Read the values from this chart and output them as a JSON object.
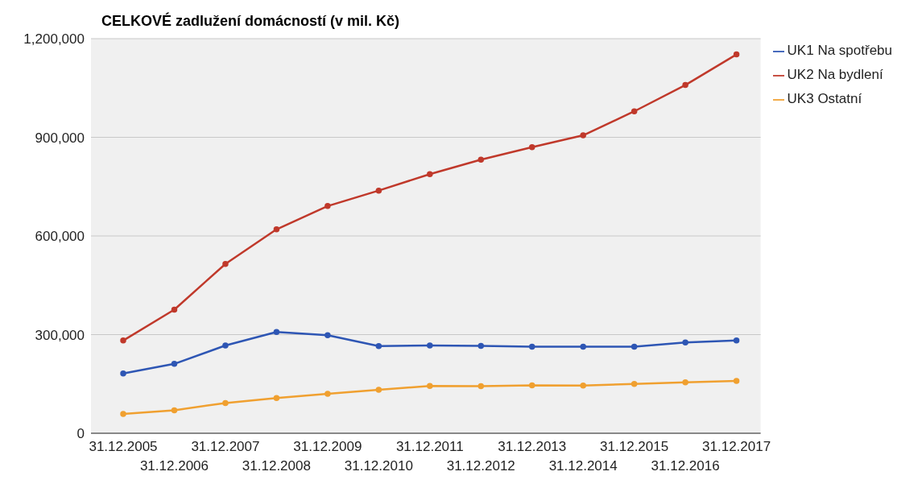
{
  "chart_data": {
    "type": "line",
    "title": "CELKOVÉ zadlužení domácností (v mil. Kč)",
    "categories": [
      "31.12.2005",
      "31.12.2006",
      "31.12.2007",
      "31.12.2008",
      "31.12.2009",
      "31.12.2010",
      "31.12.2011",
      "31.12.2012",
      "31.12.2013",
      "31.12.2014",
      "31.12.2015",
      "31.12.2016",
      "31.12.2017"
    ],
    "series": [
      {
        "name": "UK1 Na spotřebu",
        "color": "#2e56b4",
        "values": [
          182000,
          211000,
          267000,
          308000,
          298000,
          265000,
          267000,
          266000,
          263000,
          263000,
          263000,
          276000,
          282000
        ]
      },
      {
        "name": "UK2 Na bydlení",
        "color": "#c0392b",
        "values": [
          282000,
          376000,
          515000,
          620000,
          691000,
          738000,
          788000,
          832000,
          870000,
          906000,
          979000,
          1059000,
          1152000
        ]
      },
      {
        "name": "UK3 Ostatní",
        "color": "#f0a030",
        "values": [
          59000,
          70000,
          92000,
          107000,
          120000,
          132000,
          144000,
          143000,
          146000,
          145000,
          150000,
          155000,
          159000
        ]
      }
    ],
    "ylim": [
      0,
      1200000
    ],
    "yticks": [
      0,
      {
        "value": 300000,
        "label": "300,000"
      },
      {
        "value": 600000,
        "label": "600,000"
      },
      {
        "value": 900000,
        "label": "900,000"
      },
      {
        "value": 1200000,
        "label": "1,200,000"
      }
    ],
    "grid": "y",
    "legend": "top right",
    "marker": "circle",
    "line_style": "solid"
  }
}
